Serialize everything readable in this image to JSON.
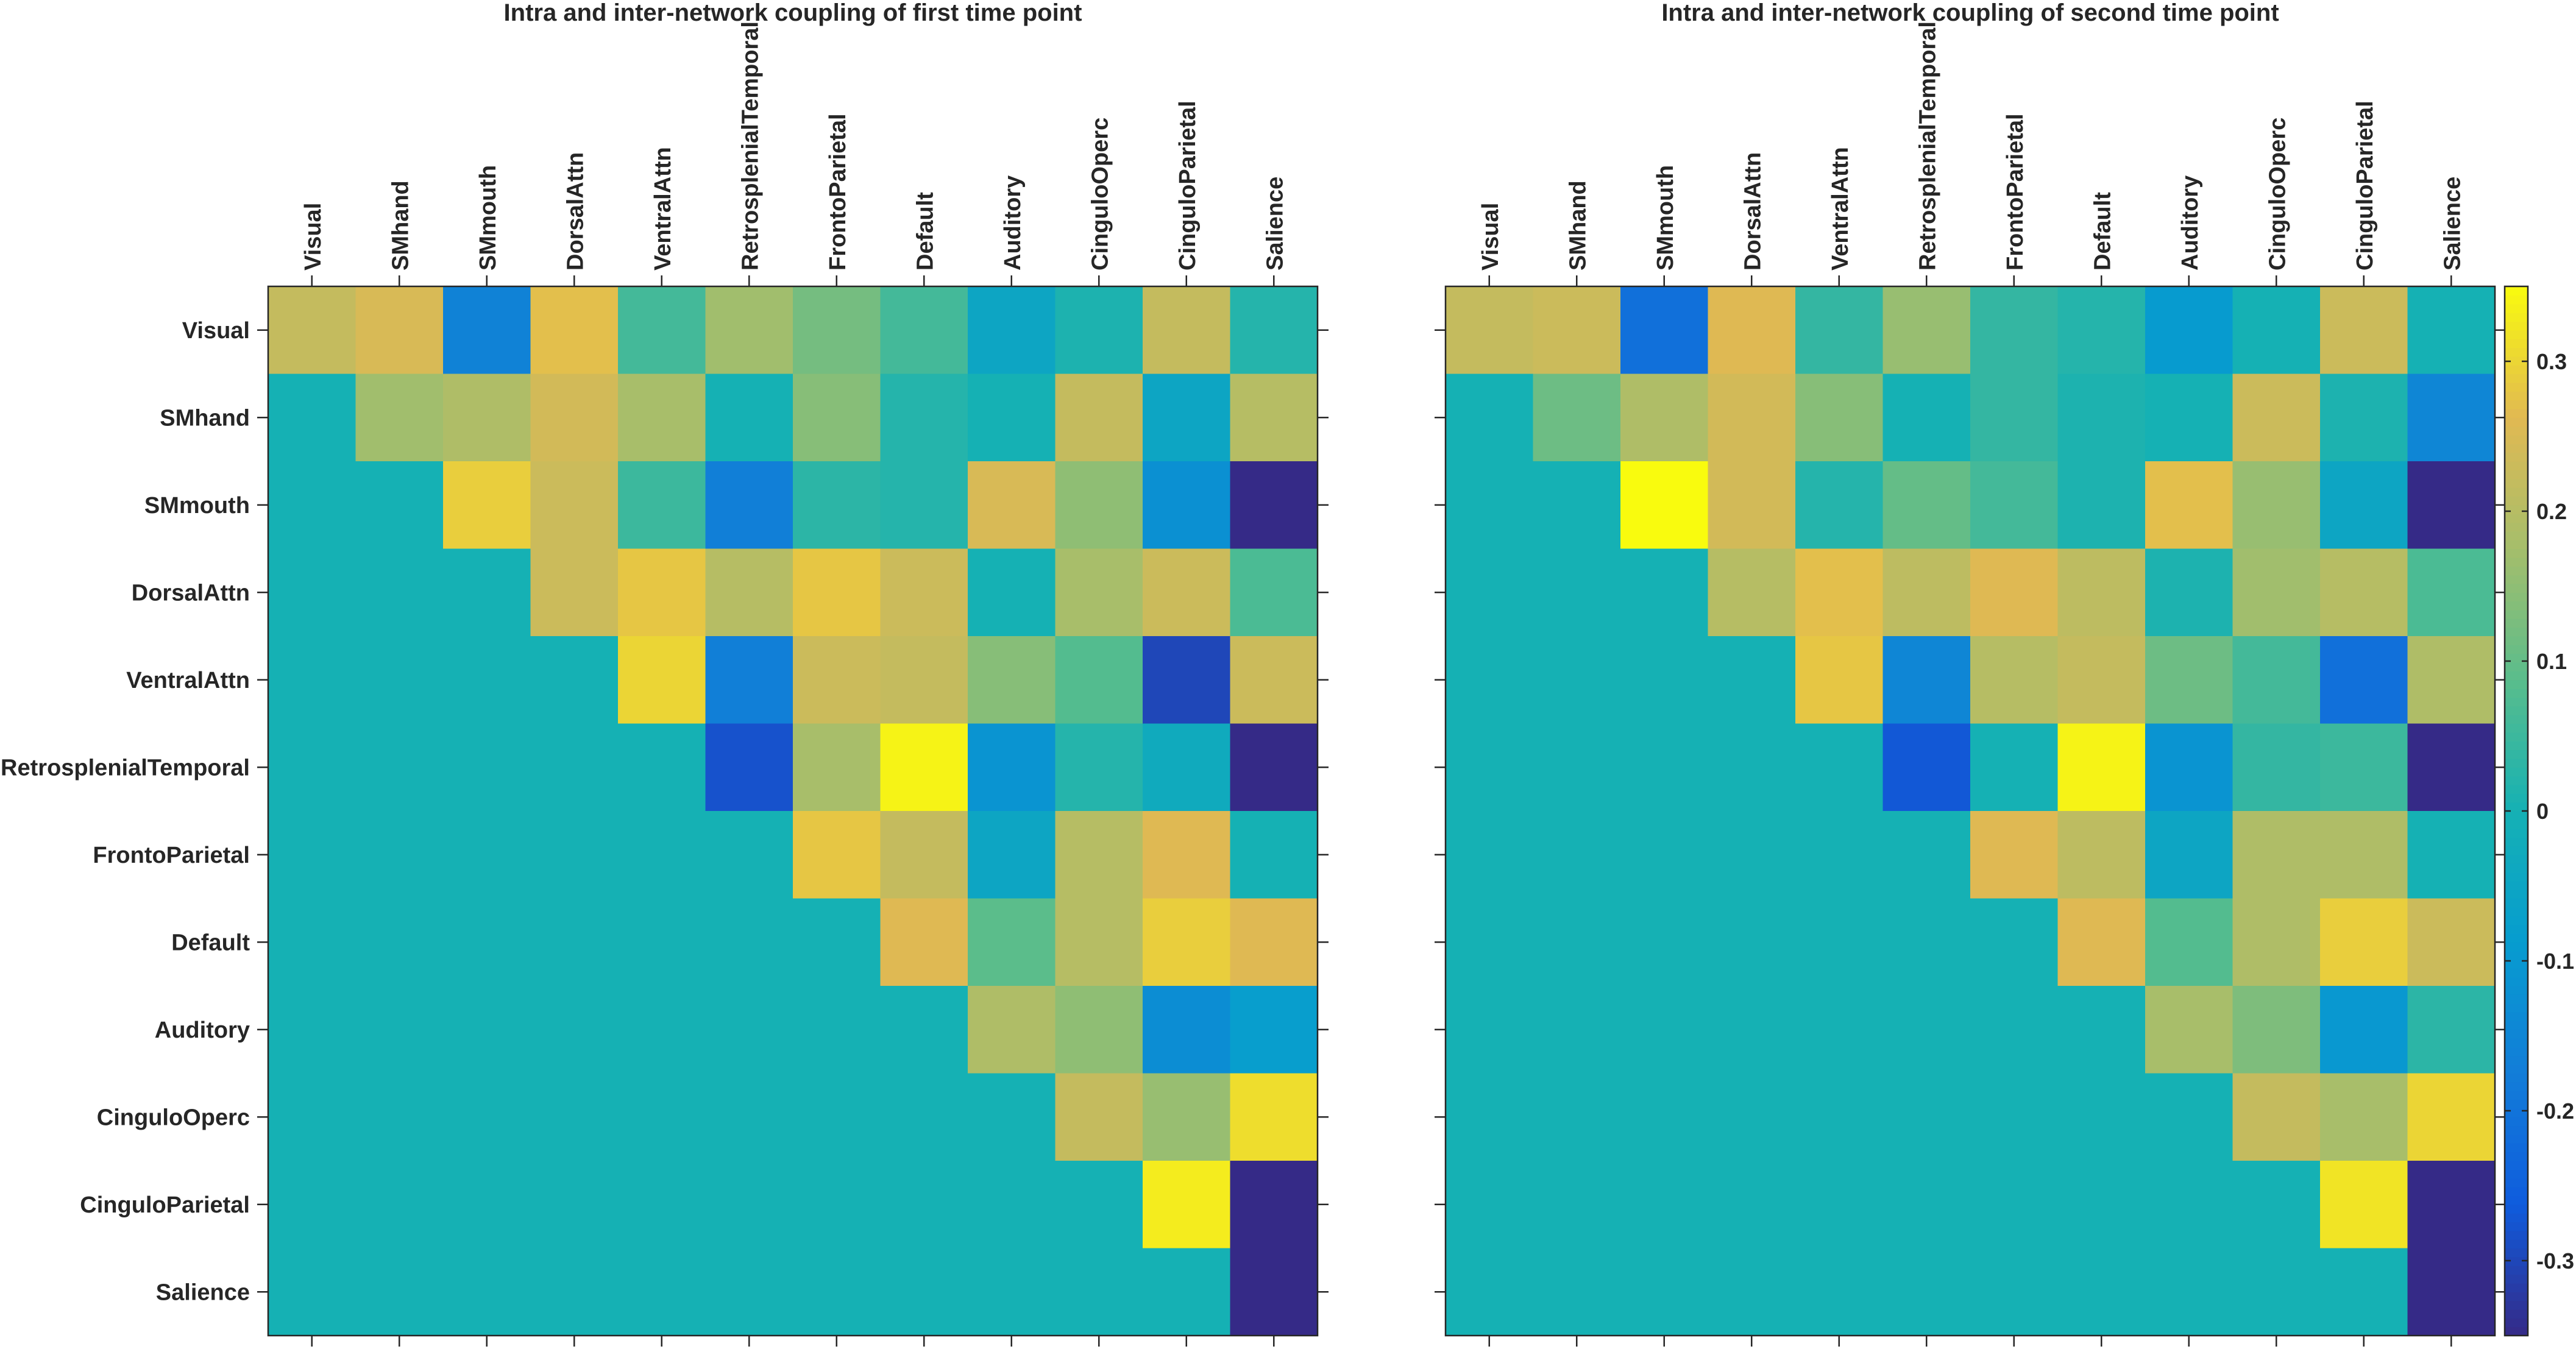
{
  "chart_data": [
    {
      "type": "heatmap",
      "title": "Intra and inter-network coupling of first time point",
      "categories": [
        "Visual",
        "SMhand",
        "SMmouth",
        "DorsalAttn",
        "VentralAttn",
        "RetrosplenialTemporal",
        "FrontoParietal",
        "Default",
        "Auditory",
        "CinguloOperc",
        "CinguloParietal",
        "Salience"
      ],
      "colorbar": false,
      "values": [
        [
          0.22,
          0.25,
          -0.16,
          0.27,
          0.06,
          0.17,
          0.12,
          0.06,
          -0.05,
          0.01,
          0.22,
          0.02
        ],
        [
          0.0,
          0.17,
          0.19,
          0.24,
          0.18,
          0.0,
          0.14,
          0.02,
          0.0,
          0.22,
          -0.05,
          0.2
        ],
        [
          0.0,
          0.0,
          0.29,
          0.23,
          0.05,
          -0.17,
          0.03,
          0.02,
          0.25,
          0.15,
          -0.12,
          -0.35
        ],
        [
          0.0,
          0.0,
          0.0,
          0.23,
          0.28,
          0.2,
          0.28,
          0.23,
          0.0,
          0.18,
          0.23,
          0.07
        ],
        [
          0.0,
          0.0,
          0.0,
          0.0,
          0.3,
          -0.17,
          0.23,
          0.22,
          0.14,
          0.08,
          -0.3,
          0.23
        ],
        [
          0.0,
          0.0,
          0.0,
          0.0,
          0.0,
          -0.28,
          0.18,
          0.34,
          -0.11,
          0.02,
          -0.03,
          -0.35
        ],
        [
          0.0,
          0.0,
          0.0,
          0.0,
          0.0,
          0.0,
          0.28,
          0.22,
          -0.05,
          0.2,
          0.26,
          0.0
        ],
        [
          0.0,
          0.0,
          0.0,
          0.0,
          0.0,
          0.0,
          0.0,
          0.26,
          0.09,
          0.2,
          0.29,
          0.26
        ],
        [
          0.0,
          0.0,
          0.0,
          0.0,
          0.0,
          0.0,
          0.0,
          0.0,
          0.19,
          0.15,
          -0.13,
          -0.08
        ],
        [
          0.0,
          0.0,
          0.0,
          0.0,
          0.0,
          0.0,
          0.0,
          0.0,
          0.0,
          0.22,
          0.16,
          0.31
        ],
        [
          0.0,
          0.0,
          0.0,
          0.0,
          0.0,
          0.0,
          0.0,
          0.0,
          0.0,
          0.0,
          0.33,
          -0.35
        ],
        [
          0.0,
          0.0,
          0.0,
          0.0,
          0.0,
          0.0,
          0.0,
          0.0,
          0.0,
          0.0,
          0.0,
          -0.35
        ]
      ],
      "clim": [
        -0.35,
        0.35
      ],
      "colormap": "parula"
    },
    {
      "type": "heatmap",
      "title": "Intra and inter-network coupling of second time point",
      "categories": [
        "Visual",
        "SMhand",
        "SMmouth",
        "DorsalAttn",
        "VentralAttn",
        "RetrosplenialTemporal",
        "FrontoParietal",
        "Default",
        "Auditory",
        "CinguloOperc",
        "CinguloParietal",
        "Salience"
      ],
      "colorbar": true,
      "colorbar_ticks": [
        -0.3,
        -0.2,
        -0.1,
        0,
        0.1,
        0.2,
        0.3
      ],
      "colorbar_tick_labels": [
        "-0.3",
        "-0.2",
        "-0.1",
        "0",
        "0.1",
        "0.2",
        "0.3"
      ],
      "values": [
        [
          0.22,
          0.23,
          -0.21,
          0.26,
          0.04,
          0.16,
          0.04,
          0.02,
          -0.09,
          0.0,
          0.23,
          0.0
        ],
        [
          0.0,
          0.11,
          0.19,
          0.24,
          0.14,
          0.0,
          0.04,
          0.01,
          0.0,
          0.23,
          0.01,
          -0.15
        ],
        [
          0.0,
          0.0,
          0.35,
          0.24,
          0.02,
          0.1,
          0.06,
          0.01,
          0.27,
          0.16,
          -0.05,
          -0.35
        ],
        [
          0.0,
          0.0,
          0.0,
          0.2,
          0.27,
          0.21,
          0.26,
          0.21,
          0.01,
          0.17,
          0.2,
          0.07
        ],
        [
          0.0,
          0.0,
          0.0,
          0.0,
          0.28,
          -0.15,
          0.2,
          0.22,
          0.11,
          0.06,
          -0.21,
          0.19
        ],
        [
          0.0,
          0.0,
          0.0,
          0.0,
          0.0,
          -0.27,
          0.0,
          0.34,
          -0.11,
          0.04,
          0.05,
          -0.35
        ],
        [
          0.0,
          0.0,
          0.0,
          0.0,
          0.0,
          0.0,
          0.26,
          0.21,
          -0.05,
          0.19,
          0.19,
          0.0
        ],
        [
          0.0,
          0.0,
          0.0,
          0.0,
          0.0,
          0.0,
          0.0,
          0.26,
          0.08,
          0.19,
          0.29,
          0.23
        ],
        [
          0.0,
          0.0,
          0.0,
          0.0,
          0.0,
          0.0,
          0.0,
          0.0,
          0.18,
          0.13,
          -0.1,
          0.03
        ],
        [
          0.0,
          0.0,
          0.0,
          0.0,
          0.0,
          0.0,
          0.0,
          0.0,
          0.0,
          0.22,
          0.18,
          0.3
        ],
        [
          0.0,
          0.0,
          0.0,
          0.0,
          0.0,
          0.0,
          0.0,
          0.0,
          0.0,
          0.0,
          0.32,
          -0.35
        ],
        [
          0.0,
          0.0,
          0.0,
          0.0,
          0.0,
          0.0,
          0.0,
          0.0,
          0.0,
          0.0,
          0.0,
          -0.35
        ]
      ],
      "clim": [
        -0.35,
        0.35
      ],
      "colormap": "parula"
    }
  ]
}
